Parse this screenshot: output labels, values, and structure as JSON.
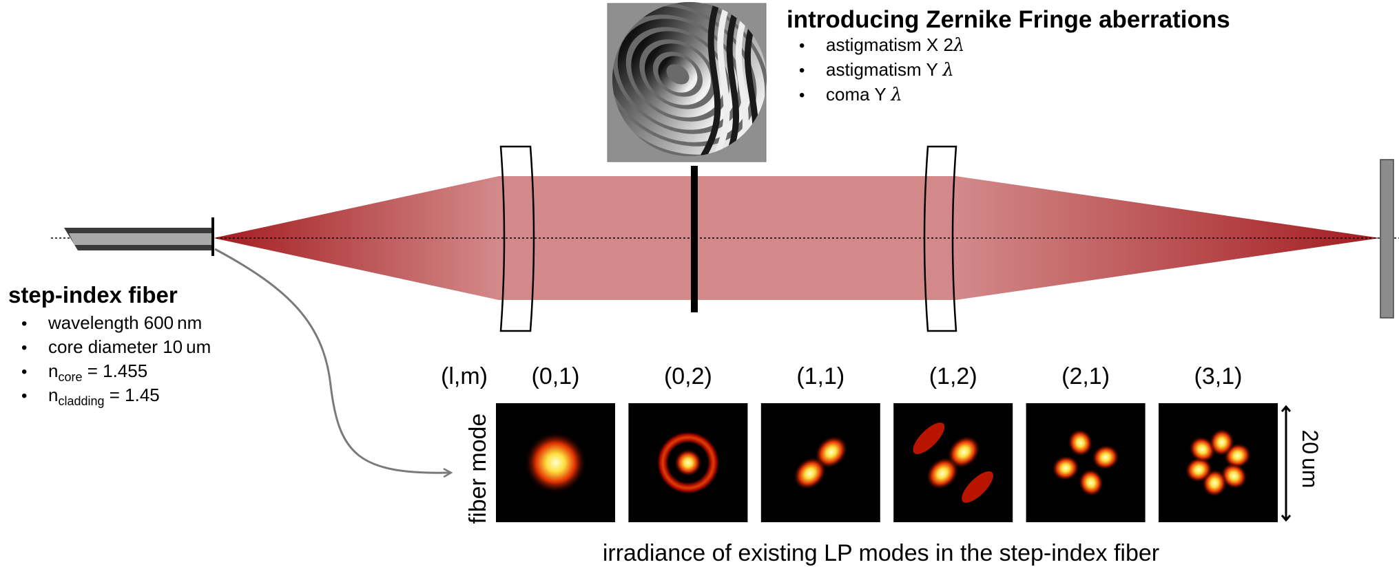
{
  "aberrations": {
    "title": "introducing Zernike Fringe aberrations",
    "items": [
      {
        "bullet": "•",
        "text": "astigmatism X 2",
        "symbol": "λ"
      },
      {
        "bullet": "•",
        "text": "astigmatism Y ",
        "symbol": "λ"
      },
      {
        "bullet": "•",
        "text": "coma Y ",
        "symbol": "λ"
      }
    ]
  },
  "fiber": {
    "title": "step-index fiber",
    "wavelength": {
      "bullet": "•",
      "label": "wavelength ",
      "value": "600",
      "unit": "nm"
    },
    "core_diameter": {
      "bullet": "•",
      "label": "core diameter ",
      "value": "10",
      "unit": "um"
    },
    "n_core": {
      "bullet": "•",
      "symbol": "n",
      "sub": "core",
      "value": " = 1.455"
    },
    "n_cladding": {
      "bullet": "•",
      "symbol": "n",
      "sub": "cladding",
      "value": " = 1.45"
    }
  },
  "modes": {
    "index_label": "(l,m)",
    "row_label": "fiber mode",
    "scale_value": "20",
    "scale_unit": "um",
    "caption": "irradiance of existing LP modes in the step-index fiber",
    "items": [
      {
        "label": "(0,1)",
        "l": 0,
        "m": 1
      },
      {
        "label": "(0,2)",
        "l": 0,
        "m": 2
      },
      {
        "label": "(1,1)",
        "l": 1,
        "m": 1
      },
      {
        "label": "(1,2)",
        "l": 1,
        "m": 2
      },
      {
        "label": "(2,1)",
        "l": 2,
        "m": 1
      },
      {
        "label": "(3,1)",
        "l": 3,
        "m": 1
      }
    ]
  },
  "colors": {
    "beam_dark": "#a31c1f",
    "beam_light": "#d3898a",
    "mode_hot": "#ffff66",
    "mode_mid": "#d00000",
    "screen": "#8c8c8c"
  }
}
